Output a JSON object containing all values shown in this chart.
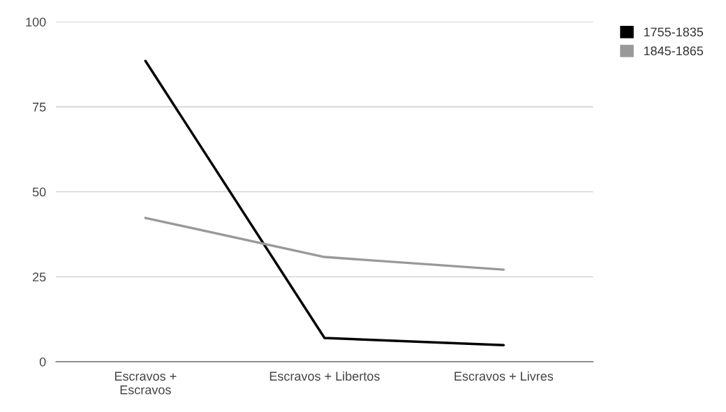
{
  "chart_data": {
    "type": "line",
    "categories": [
      "Escravos +\nEscravos",
      "Escravos + Libertos",
      "Escravos + Livres"
    ],
    "series": [
      {
        "name": "1755-1835",
        "color": "#000000",
        "values": [
          88.5,
          7.0,
          4.9
        ]
      },
      {
        "name": "1845-1865",
        "color": "#999999",
        "values": [
          42.3,
          30.8,
          27.1
        ]
      }
    ],
    "ylim": [
      0,
      100
    ],
    "yticks": [
      0,
      25,
      50,
      75,
      100
    ],
    "grid": "y",
    "legend": "top right",
    "marker": "none",
    "line_style": "solid"
  }
}
